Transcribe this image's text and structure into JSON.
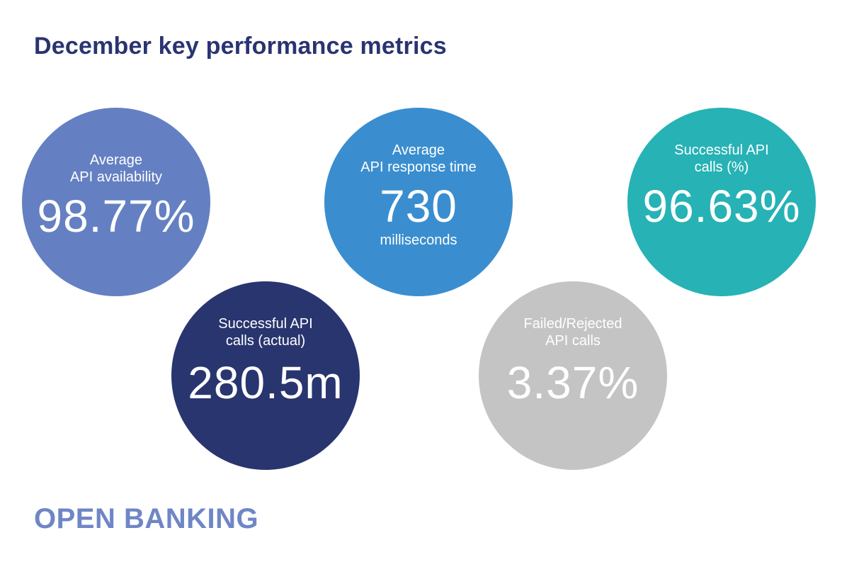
{
  "title": "December key performance metrics",
  "metrics": [
    {
      "label": "Average\nAPI availability",
      "value": "98.77%",
      "unit": "",
      "color": "#6480c2"
    },
    {
      "label": "Average\nAPI response time",
      "value": "730",
      "unit": "milliseconds",
      "color": "#3a8ecf"
    },
    {
      "label": "Successful API\ncalls (%)",
      "value": "96.63%",
      "unit": "",
      "color": "#27b2b5"
    },
    {
      "label": "Successful API\ncalls (actual)",
      "value": "280.5m",
      "unit": "",
      "color": "#29356f"
    },
    {
      "label": "Failed/Rejected\nAPI calls",
      "value": "3.37%",
      "unit": "",
      "color": "#c4c4c4"
    }
  ],
  "logo": "OPEN BANKING"
}
